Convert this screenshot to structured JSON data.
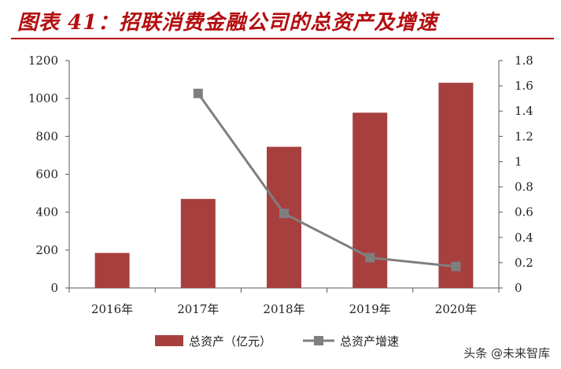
{
  "title": "图表 41：招联消费金融公司的总资产及增速",
  "watermark": "头条 @未来智库",
  "colors": {
    "bar": "#a73f3f",
    "line": "#7f7f7f",
    "title": "#b40d0f"
  },
  "chart_data": {
    "type": "bar",
    "categories": [
      "2016年",
      "2017年",
      "2018年",
      "2019年",
      "2020年"
    ],
    "series": [
      {
        "name": "总资产（亿元）",
        "type": "bar",
        "axis": "left",
        "values": [
          185,
          470,
          745,
          925,
          1083
        ]
      },
      {
        "name": "总资产增速",
        "type": "line",
        "axis": "right",
        "values": [
          null,
          1.54,
          0.59,
          0.24,
          0.17
        ]
      }
    ],
    "y_left": {
      "min": 0,
      "max": 1200,
      "ticks": [
        0,
        200,
        400,
        600,
        800,
        1000,
        1200
      ]
    },
    "y_right": {
      "min": 0,
      "max": 1.8,
      "ticks": [
        "0",
        "0.2",
        "0.4",
        "0.6",
        "0.8",
        "1",
        "1.2",
        "1.4",
        "1.6",
        "1.8"
      ]
    },
    "legend_position": "bottom",
    "grid": false
  }
}
